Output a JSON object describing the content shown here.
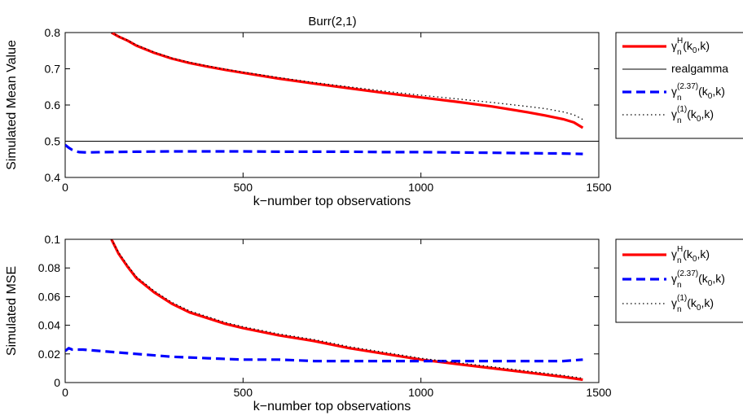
{
  "figure": {
    "title": "Burr(2,1)"
  },
  "chart_data": [
    {
      "type": "line",
      "title": "Burr(2,1)",
      "xlabel": "k−number top observations",
      "ylabel": "Simulated Mean Value",
      "xlim": [
        0,
        1500
      ],
      "ylim": [
        0.4,
        0.8
      ],
      "xticks": [
        0,
        500,
        1000,
        1500
      ],
      "yticks": [
        0.4,
        0.5,
        0.6,
        0.7,
        0.8
      ],
      "xtick_labels": [
        "0",
        "500",
        "1000",
        "1500"
      ],
      "ytick_labels": [
        "0.4",
        "0.5",
        "0.6",
        "0.7",
        "0.8"
      ],
      "legend_position": "outside-right",
      "series": [
        {
          "name": "γnH(k0,k)",
          "label_parts": {
            "base": "γ",
            "sup": "H",
            "sub": "n",
            "tail_1": "(k",
            "tail_sub": "0",
            "tail_2": ",k)"
          },
          "color": "#ff0000",
          "style": "solid-thick",
          "x": [
            130,
            150,
            175,
            200,
            250,
            300,
            350,
            400,
            450,
            500,
            600,
            700,
            800,
            900,
            1000,
            1100,
            1200,
            1300,
            1350,
            1400,
            1430,
            1455
          ],
          "y": [
            0.8,
            0.789,
            0.778,
            0.764,
            0.744,
            0.728,
            0.716,
            0.706,
            0.697,
            0.689,
            0.673,
            0.659,
            0.646,
            0.633,
            0.621,
            0.609,
            0.596,
            0.58,
            0.571,
            0.561,
            0.552,
            0.537
          ]
        },
        {
          "name": "realgamma",
          "label_parts": {
            "base": "realgamma",
            "sup": "",
            "sub": "",
            "tail_1": "",
            "tail_sub": "",
            "tail_2": ""
          },
          "color": "#000000",
          "style": "solid-thin",
          "x": [
            0,
            1500
          ],
          "y": [
            0.5,
            0.5
          ]
        },
        {
          "name": "γn(2.37)(k0,k)",
          "label_parts": {
            "base": "γ",
            "sup": "(2.37)",
            "sub": "n",
            "tail_1": "(k",
            "tail_sub": "0",
            "tail_2": ",k)"
          },
          "color": "#0000ff",
          "style": "dashed-thick",
          "x": [
            0,
            10,
            20,
            30,
            40,
            60,
            100,
            200,
            300,
            400,
            500,
            600,
            700,
            800,
            900,
            1000,
            1100,
            1200,
            1300,
            1400,
            1455
          ],
          "y": [
            0.49,
            0.482,
            0.476,
            0.472,
            0.47,
            0.469,
            0.47,
            0.471,
            0.472,
            0.472,
            0.472,
            0.471,
            0.471,
            0.471,
            0.47,
            0.47,
            0.469,
            0.468,
            0.467,
            0.466,
            0.465
          ]
        },
        {
          "name": "γn(1)(k0,k)",
          "label_parts": {
            "base": "γ",
            "sup": "(1)",
            "sub": "n",
            "tail_1": "(k",
            "tail_sub": "0",
            "tail_2": ",k)"
          },
          "color": "#000000",
          "style": "dotted",
          "x": [
            130,
            150,
            175,
            200,
            250,
            300,
            350,
            400,
            450,
            500,
            600,
            700,
            800,
            900,
            1000,
            1100,
            1200,
            1300,
            1350,
            1400,
            1430,
            1455
          ],
          "y": [
            0.8,
            0.79,
            0.779,
            0.766,
            0.746,
            0.73,
            0.718,
            0.708,
            0.699,
            0.691,
            0.676,
            0.662,
            0.65,
            0.638,
            0.627,
            0.617,
            0.607,
            0.596,
            0.59,
            0.581,
            0.573,
            0.56
          ]
        }
      ]
    },
    {
      "type": "line",
      "title": "",
      "xlabel": "k−number top observations",
      "ylabel": "Simulated MSE",
      "xlim": [
        0,
        1500
      ],
      "ylim": [
        0,
        0.1
      ],
      "xticks": [
        0,
        500,
        1000,
        1500
      ],
      "yticks": [
        0,
        0.02,
        0.04,
        0.06,
        0.08,
        0.1
      ],
      "xtick_labels": [
        "0",
        "500",
        "1000",
        "1500"
      ],
      "ytick_labels": [
        "0",
        "0.02",
        "0.04",
        "0.06",
        "0.08",
        "0.1"
      ],
      "legend_position": "outside-right",
      "series": [
        {
          "name": "γnH(k0,k)",
          "label_parts": {
            "base": "γ",
            "sup": "H",
            "sub": "n",
            "tail_1": "(k",
            "tail_sub": "0",
            "tail_2": ",k)"
          },
          "color": "#ff0000",
          "style": "solid-thick",
          "x": [
            130,
            150,
            175,
            200,
            250,
            300,
            350,
            400,
            450,
            500,
            600,
            700,
            800,
            900,
            1000,
            1100,
            1200,
            1300,
            1400,
            1455
          ],
          "y": [
            0.1,
            0.09,
            0.081,
            0.073,
            0.063,
            0.055,
            0.049,
            0.045,
            0.041,
            0.038,
            0.033,
            0.029,
            0.024,
            0.02,
            0.016,
            0.013,
            0.01,
            0.007,
            0.004,
            0.002
          ]
        },
        {
          "name": "γn(2.37)(k0,k)",
          "label_parts": {
            "base": "γ",
            "sup": "(2.37)",
            "sub": "n",
            "tail_1": "(k",
            "tail_sub": "0",
            "tail_2": ",k)"
          },
          "color": "#0000ff",
          "style": "dashed-thick",
          "x": [
            0,
            10,
            20,
            30,
            50,
            100,
            200,
            300,
            400,
            500,
            600,
            700,
            800,
            900,
            1000,
            1100,
            1200,
            1300,
            1400,
            1455
          ],
          "y": [
            0.022,
            0.024,
            0.023,
            0.023,
            0.023,
            0.022,
            0.02,
            0.018,
            0.017,
            0.016,
            0.016,
            0.015,
            0.015,
            0.015,
            0.015,
            0.015,
            0.015,
            0.015,
            0.015,
            0.016
          ]
        },
        {
          "name": "γn(1)(k0,k)",
          "label_parts": {
            "base": "γ",
            "sup": "(1)",
            "sub": "n",
            "tail_1": "(k",
            "tail_sub": "0",
            "tail_2": ",k)"
          },
          "color": "#000000",
          "style": "dotted",
          "x": [
            130,
            150,
            175,
            200,
            250,
            300,
            350,
            400,
            450,
            500,
            600,
            700,
            800,
            900,
            1000,
            1100,
            1200,
            1300,
            1400,
            1455
          ],
          "y": [
            0.1,
            0.091,
            0.082,
            0.074,
            0.064,
            0.056,
            0.05,
            0.046,
            0.042,
            0.039,
            0.034,
            0.03,
            0.025,
            0.021,
            0.017,
            0.014,
            0.011,
            0.008,
            0.005,
            0.003
          ]
        }
      ]
    }
  ]
}
